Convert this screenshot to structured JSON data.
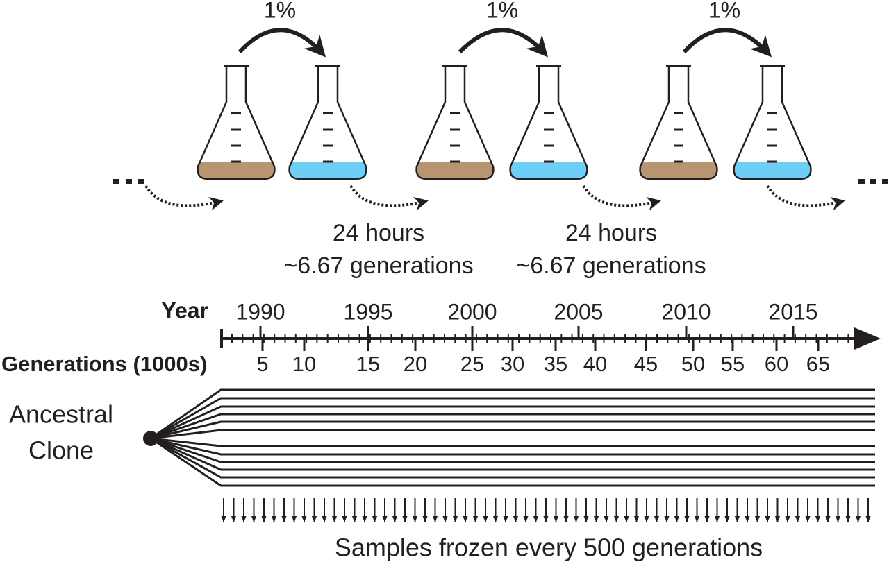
{
  "transfer": {
    "fraction_labels": [
      "1%",
      "1%",
      "1%"
    ],
    "cycles": [
      {
        "time": "24 hours",
        "generations": "~6.67 generations"
      },
      {
        "time": "24 hours",
        "generations": "~6.67 generations"
      }
    ]
  },
  "timeline": {
    "year_label": "Year",
    "years": [
      1990,
      1995,
      2000,
      2005,
      2010,
      2015
    ],
    "generation_label": "Generations (1000s)",
    "generations": [
      5,
      10,
      15,
      20,
      25,
      30,
      35,
      40,
      45,
      50,
      55,
      60,
      65
    ]
  },
  "populations": {
    "origin_label": [
      "Ancestral",
      "Clone"
    ]
  },
  "footer": "Samples frozen every 500 generations"
}
